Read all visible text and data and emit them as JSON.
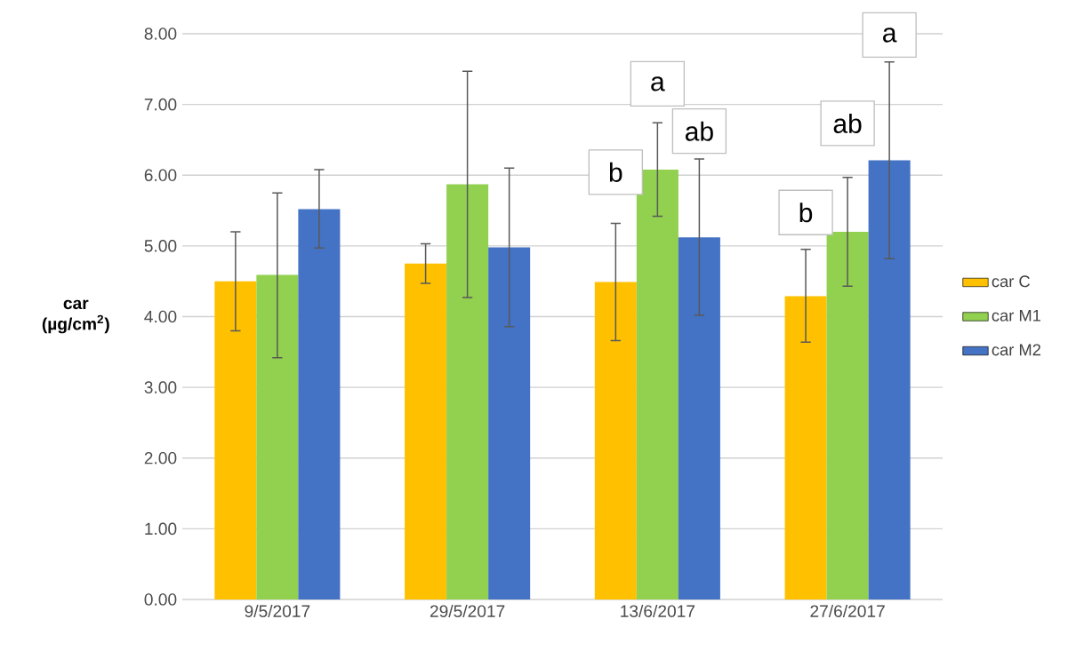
{
  "chart_data": {
    "type": "bar",
    "categories": [
      "9/5/2017",
      "29/5/2017",
      "13/6/2017",
      "27/6/2017"
    ],
    "ylabel": "car (µg/cm$^{2}$)",
    "series": [
      {
        "name": "car C",
        "color": "#ffc000",
        "values": [
          4.5,
          4.75,
          4.49,
          4.29
        ],
        "errors": [
          [
            3.8,
            5.2
          ],
          [
            4.47,
            5.03
          ],
          [
            3.66,
            5.32
          ],
          [
            3.64,
            4.95
          ]
        ]
      },
      {
        "name": "car M1",
        "color": "#92d050",
        "values": [
          4.59,
          5.87,
          6.08,
          5.2
        ],
        "errors": [
          [
            3.42,
            5.75
          ],
          [
            4.27,
            7.47
          ],
          [
            5.42,
            6.74
          ],
          [
            4.43,
            5.97
          ]
        ]
      },
      {
        "name": "car M2",
        "color": "#4472c4",
        "values": [
          5.52,
          4.98,
          5.12,
          6.21
        ],
        "errors": [
          [
            4.97,
            6.08
          ],
          [
            3.86,
            6.1
          ],
          [
            4.02,
            6.23
          ],
          [
            4.82,
            7.6
          ]
        ]
      }
    ],
    "ylim": [
      0,
      8
    ],
    "yticks": [
      {
        "value": 0,
        "label": "0.00"
      },
      {
        "value": 1,
        "label": "1.00"
      },
      {
        "value": 2,
        "label": "2.00"
      },
      {
        "value": 3,
        "label": "3.00"
      },
      {
        "value": 4,
        "label": "4.00"
      },
      {
        "value": 5,
        "label": "5.00"
      },
      {
        "value": 6,
        "label": "6.00"
      },
      {
        "value": 7,
        "label": "7.00"
      },
      {
        "value": 8,
        "label": "8.00"
      }
    ],
    "grid": "y",
    "legend": "right",
    "annotations": [
      "b",
      "a",
      "ab",
      "b",
      "ab",
      "a"
    ]
  }
}
